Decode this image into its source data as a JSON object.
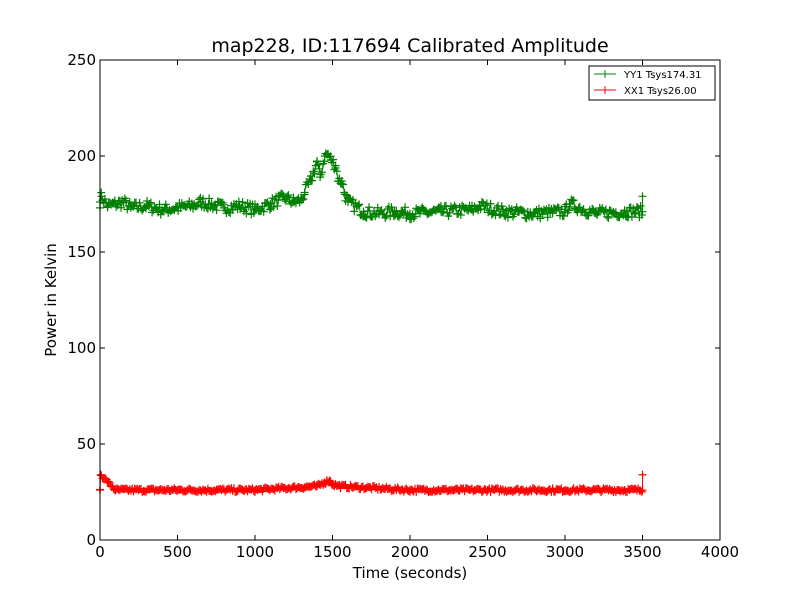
{
  "chart_data": {
    "type": "scatter",
    "title": "map228, ID:117694 Calibrated Amplitude",
    "xlabel": "Time (seconds)",
    "ylabel": "Power in Kelvin",
    "xlim": [
      0,
      4000
    ],
    "ylim": [
      0,
      250
    ],
    "xticks": [
      "0",
      "500",
      "1000",
      "1500",
      "2000",
      "2500",
      "3000",
      "3500",
      "4000"
    ],
    "yticks": [
      "0",
      "50",
      "100",
      "150",
      "200",
      "250"
    ],
    "grid": false,
    "legend_position": "top-right",
    "marker": "plus",
    "series": [
      {
        "name": "YY1 Tsys174.31",
        "color": "#008000",
        "x_range": [
          0,
          3500
        ],
        "baseline": 171,
        "noise": 3,
        "points": [
          [
            0,
            176
          ],
          [
            10,
            179
          ],
          [
            50,
            174
          ],
          [
            100,
            175
          ],
          [
            150,
            176
          ],
          [
            200,
            173
          ],
          [
            300,
            174
          ],
          [
            400,
            172
          ],
          [
            500,
            173
          ],
          [
            600,
            174
          ],
          [
            650,
            176
          ],
          [
            700,
            175
          ],
          [
            800,
            173
          ],
          [
            900,
            174
          ],
          [
            1000,
            172
          ],
          [
            1100,
            175
          ],
          [
            1150,
            177
          ],
          [
            1200,
            178
          ],
          [
            1250,
            176
          ],
          [
            1300,
            177
          ],
          [
            1320,
            181
          ],
          [
            1360,
            187
          ],
          [
            1380,
            192
          ],
          [
            1400,
            197
          ],
          [
            1420,
            189
          ],
          [
            1450,
            200
          ],
          [
            1470,
            201
          ],
          [
            1490,
            198
          ],
          [
            1520,
            195
          ],
          [
            1540,
            187
          ],
          [
            1560,
            187
          ],
          [
            1580,
            180
          ],
          [
            1600,
            176
          ],
          [
            1700,
            171
          ],
          [
            1800,
            170
          ],
          [
            1900,
            171
          ],
          [
            2000,
            170
          ],
          [
            2200,
            171
          ],
          [
            2400,
            172
          ],
          [
            2450,
            174
          ],
          [
            2600,
            171
          ],
          [
            2800,
            170
          ],
          [
            3000,
            171
          ],
          [
            3030,
            175
          ],
          [
            3200,
            170
          ],
          [
            3400,
            171
          ],
          [
            3500,
            171
          ],
          [
            3500,
            179
          ]
        ]
      },
      {
        "name": "XX1 Tsys26.00",
        "color": "#ff0000",
        "x_range": [
          0,
          3500
        ],
        "baseline": 26,
        "noise": 1,
        "points": [
          [
            0,
            26
          ],
          [
            5,
            34
          ],
          [
            100,
            26
          ],
          [
            500,
            26
          ],
          [
            1000,
            26
          ],
          [
            1400,
            28
          ],
          [
            1450,
            30
          ],
          [
            1480,
            31
          ],
          [
            1500,
            29
          ],
          [
            1550,
            28
          ],
          [
            2000,
            26
          ],
          [
            2500,
            26
          ],
          [
            3000,
            26
          ],
          [
            3500,
            26
          ],
          [
            3500,
            34
          ]
        ]
      }
    ]
  }
}
